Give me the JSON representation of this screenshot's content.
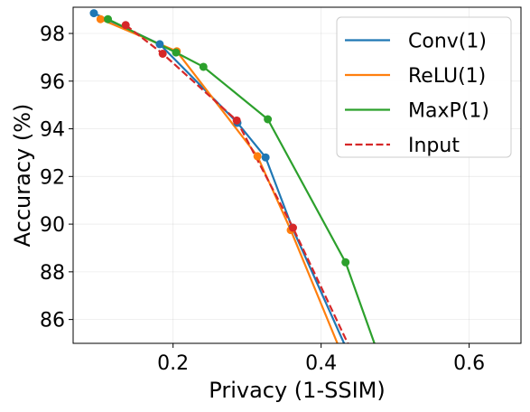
{
  "chart_data": {
    "type": "line",
    "title": "",
    "xlabel": "Privacy (1-SSIM)",
    "ylabel": "Accuracy (%)",
    "xlim": [
      0.065,
      0.67
    ],
    "ylim": [
      85.0,
      99.1
    ],
    "x_ticks": [
      {
        "value": 0.2,
        "label": "0.2"
      },
      {
        "value": 0.4,
        "label": "0.4"
      },
      {
        "value": 0.6,
        "label": "0.6"
      }
    ],
    "y_ticks": [
      {
        "value": 86,
        "label": "86"
      },
      {
        "value": 88,
        "label": "88"
      },
      {
        "value": 90,
        "label": "90"
      },
      {
        "value": 92,
        "label": "92"
      },
      {
        "value": 94,
        "label": "94"
      },
      {
        "value": 96,
        "label": "96"
      },
      {
        "value": 98,
        "label": "98"
      }
    ],
    "grid": true,
    "legend_position": "top-right",
    "series": [
      {
        "name": "Conv(1)",
        "color": "#1f77b4",
        "dash": "solid",
        "points": [
          {
            "x": 0.093,
            "y": 98.85
          },
          {
            "x": 0.182,
            "y": 97.55
          },
          {
            "x": 0.287,
            "y": 94.25
          },
          {
            "x": 0.325,
            "y": 92.8
          },
          {
            "x": 0.361,
            "y": 89.85
          },
          {
            "x": 0.431,
            "y": 85.0
          }
        ],
        "markers": [
          {
            "x": 0.093,
            "y": 98.85
          },
          {
            "x": 0.182,
            "y": 97.55
          },
          {
            "x": 0.287,
            "y": 94.25
          },
          {
            "x": 0.325,
            "y": 92.8
          },
          {
            "x": 0.361,
            "y": 89.85
          }
        ]
      },
      {
        "name": "ReLU(1)",
        "color": "#ff7f0e",
        "dash": "solid",
        "points": [
          {
            "x": 0.102,
            "y": 98.6
          },
          {
            "x": 0.205,
            "y": 97.25
          },
          {
            "x": 0.314,
            "y": 92.85
          },
          {
            "x": 0.359,
            "y": 89.75
          },
          {
            "x": 0.422,
            "y": 85.0
          }
        ],
        "markers": [
          {
            "x": 0.102,
            "y": 98.6
          },
          {
            "x": 0.205,
            "y": 97.25
          },
          {
            "x": 0.314,
            "y": 92.85
          },
          {
            "x": 0.359,
            "y": 89.75
          }
        ]
      },
      {
        "name": "MaxP(1)",
        "color": "#2ca02c",
        "dash": "solid",
        "points": [
          {
            "x": 0.112,
            "y": 98.6
          },
          {
            "x": 0.204,
            "y": 97.2
          },
          {
            "x": 0.241,
            "y": 96.6
          },
          {
            "x": 0.328,
            "y": 94.4
          },
          {
            "x": 0.433,
            "y": 88.4
          },
          {
            "x": 0.472,
            "y": 85.0
          }
        ],
        "markers": [
          {
            "x": 0.112,
            "y": 98.6
          },
          {
            "x": 0.204,
            "y": 97.2
          },
          {
            "x": 0.241,
            "y": 96.6
          },
          {
            "x": 0.328,
            "y": 94.4
          },
          {
            "x": 0.433,
            "y": 88.4
          }
        ]
      },
      {
        "name": "Input",
        "color": "#d62728",
        "dash": "dashed",
        "points": [
          {
            "x": 0.136,
            "y": 98.35
          },
          {
            "x": 0.186,
            "y": 97.15
          },
          {
            "x": 0.286,
            "y": 94.35
          },
          {
            "x": 0.362,
            "y": 89.85
          },
          {
            "x": 0.436,
            "y": 85.0
          }
        ],
        "markers": [
          {
            "x": 0.136,
            "y": 98.35
          },
          {
            "x": 0.186,
            "y": 97.15
          },
          {
            "x": 0.286,
            "y": 94.35
          },
          {
            "x": 0.362,
            "y": 89.85
          }
        ]
      }
    ]
  }
}
